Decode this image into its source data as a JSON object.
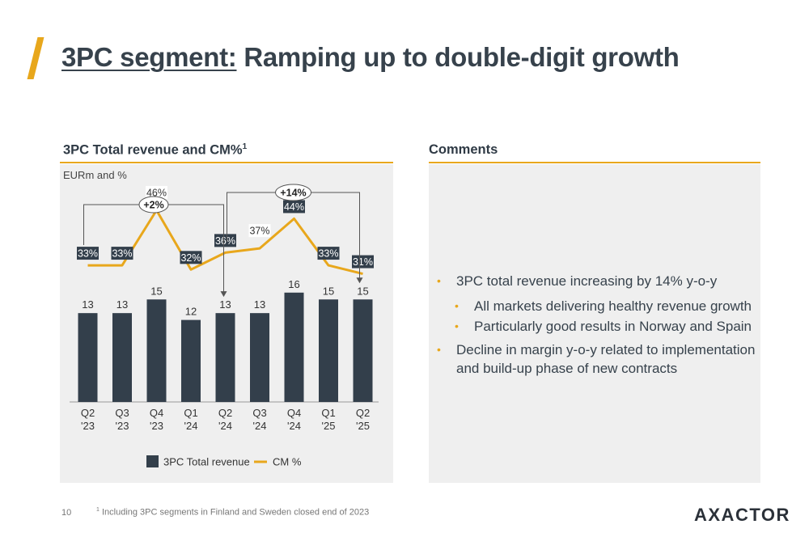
{
  "page": {
    "title_underlined": "3PC segment:",
    "title_rest": " Ramping up to double-digit growth",
    "page_number": "10",
    "footnote_marker": "1",
    "footnote": " Including 3PC segments in Finland and Sweden closed end of 2023",
    "logo": "AXACTOR"
  },
  "left_panel": {
    "heading": "3PC Total revenue and CM%",
    "heading_sup": "1",
    "units": "EURm and %"
  },
  "right_panel": {
    "heading": "Comments",
    "bullets": [
      {
        "level": 1,
        "text": "3PC total revenue increasing by 14% y-o-y"
      },
      {
        "level": 2,
        "text": "All markets delivering healthy revenue growth"
      },
      {
        "level": 2,
        "text": "Particularly good results in Norway and Spain"
      },
      {
        "level": 1,
        "text": "Decline in margin y-o-y related to implementation and build-up phase of new contracts"
      }
    ]
  },
  "colors": {
    "bar": "#333f4b",
    "line": "#e8a71c",
    "panel_bg": "#efefef",
    "accent": "#e8a71c"
  },
  "chart_data": {
    "type": "bar",
    "categories": [
      "Q2\n'23",
      "Q3\n'23",
      "Q4\n'23",
      "Q1\n'24",
      "Q2\n'24",
      "Q3\n'24",
      "Q4\n'24",
      "Q1\n'25",
      "Q2\n'25"
    ],
    "category_lines": [
      [
        "Q2",
        "'23"
      ],
      [
        "Q3",
        "'23"
      ],
      [
        "Q4",
        "'23"
      ],
      [
        "Q1",
        "'24"
      ],
      [
        "Q2",
        "'24"
      ],
      [
        "Q3",
        "'24"
      ],
      [
        "Q4",
        "'24"
      ],
      [
        "Q1",
        "'25"
      ],
      [
        "Q2",
        "'25"
      ]
    ],
    "series": [
      {
        "name": "3PC Total revenue",
        "type": "bar",
        "values": [
          13,
          13,
          15,
          12,
          13,
          13,
          16,
          15,
          15
        ]
      },
      {
        "name": "CM %",
        "type": "line",
        "values": [
          33,
          33,
          46,
          32,
          36,
          37,
          44,
          33,
          31
        ],
        "unit": "%"
      }
    ],
    "bar_labels": [
      "13",
      "13",
      "15",
      "12",
      "13",
      "13",
      "16",
      "15",
      "15"
    ],
    "line_labels": [
      "33%",
      "33%",
      "46%",
      "32%",
      "36%",
      "37%",
      "44%",
      "33%",
      "31%"
    ],
    "line_label_style": [
      "dark",
      "dark",
      "light",
      "dark",
      "dark",
      "light",
      "dark",
      "dark",
      "dark"
    ],
    "annotations": [
      {
        "text": "+2%",
        "from_index": 0,
        "to_index": 4
      },
      {
        "text": "+14%",
        "from_index": 4,
        "to_index": 8
      }
    ],
    "legend_position": "bottom",
    "grid": false
  }
}
